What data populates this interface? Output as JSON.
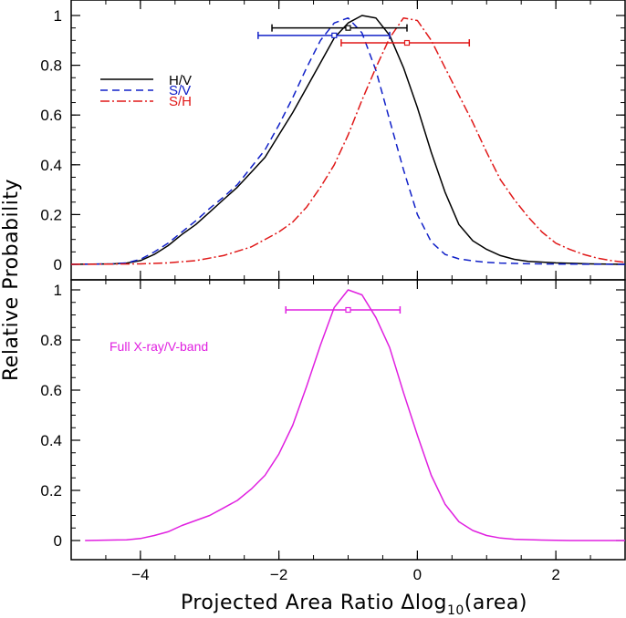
{
  "chart_data": [
    {
      "type": "line",
      "panel": "top",
      "xlim": [
        -5,
        3
      ],
      "ylim": [
        0,
        1.0
      ],
      "yticks": [
        0,
        0.2,
        0.4,
        0.6,
        0.8,
        1
      ],
      "ytick_labels": [
        "0",
        "0.2",
        "0.4",
        "0.6",
        "0.8",
        "1"
      ],
      "legend_position": "top-left",
      "series": [
        {
          "name": "H/V",
          "color": "#000000",
          "dash": "solid",
          "x": [
            -5,
            -4.4,
            -4.2,
            -4.0,
            -3.8,
            -3.6,
            -3.4,
            -3.2,
            -3.0,
            -2.8,
            -2.6,
            -2.4,
            -2.2,
            -2.0,
            -1.8,
            -1.6,
            -1.4,
            -1.2,
            -1.0,
            -0.8,
            -0.6,
            -0.4,
            -0.2,
            0.0,
            0.2,
            0.4,
            0.6,
            0.8,
            1.0,
            1.2,
            1.4,
            1.6,
            2.0,
            2.5,
            3.0
          ],
          "y": [
            0,
            0.002,
            0.005,
            0.015,
            0.04,
            0.075,
            0.12,
            0.16,
            0.21,
            0.26,
            0.31,
            0.37,
            0.43,
            0.52,
            0.61,
            0.71,
            0.81,
            0.91,
            0.97,
            1.0,
            0.99,
            0.92,
            0.79,
            0.63,
            0.45,
            0.29,
            0.16,
            0.095,
            0.06,
            0.035,
            0.02,
            0.012,
            0.006,
            0.002,
            0.0
          ]
        },
        {
          "name": "S/V",
          "color": "#1020c8",
          "dash": "dashed",
          "x": [
            -5,
            -4.4,
            -4.2,
            -4.0,
            -3.8,
            -3.6,
            -3.4,
            -3.2,
            -3.0,
            -2.8,
            -2.6,
            -2.4,
            -2.2,
            -2.0,
            -1.8,
            -1.6,
            -1.4,
            -1.2,
            -1.0,
            -0.8,
            -0.6,
            -0.4,
            -0.2,
            0.0,
            0.2,
            0.4,
            0.6,
            0.8,
            1.0,
            1.2,
            1.5,
            2.0,
            3.0
          ],
          "y": [
            0,
            0.002,
            0.006,
            0.02,
            0.05,
            0.085,
            0.13,
            0.175,
            0.225,
            0.27,
            0.32,
            0.39,
            0.46,
            0.56,
            0.67,
            0.79,
            0.9,
            0.97,
            0.99,
            0.93,
            0.78,
            0.58,
            0.38,
            0.2,
            0.09,
            0.04,
            0.022,
            0.014,
            0.008,
            0.005,
            0.003,
            0.001,
            0.0
          ]
        },
        {
          "name": "S/H",
          "color": "#e01818",
          "dash": "dashdot",
          "x": [
            -5,
            -4.0,
            -3.6,
            -3.2,
            -2.8,
            -2.4,
            -2.0,
            -1.8,
            -1.6,
            -1.4,
            -1.2,
            -1.0,
            -0.8,
            -0.6,
            -0.4,
            -0.2,
            0.0,
            0.2,
            0.4,
            0.6,
            0.8,
            1.0,
            1.2,
            1.4,
            1.6,
            1.8,
            2.0,
            2.2,
            2.4,
            2.6,
            2.8,
            3.0
          ],
          "y": [
            0,
            0.002,
            0.006,
            0.015,
            0.035,
            0.07,
            0.13,
            0.17,
            0.23,
            0.31,
            0.4,
            0.52,
            0.66,
            0.79,
            0.91,
            0.99,
            0.98,
            0.9,
            0.79,
            0.68,
            0.57,
            0.45,
            0.34,
            0.26,
            0.19,
            0.13,
            0.085,
            0.06,
            0.04,
            0.025,
            0.015,
            0.008
          ]
        }
      ],
      "error_bars": [
        {
          "series": "H/V",
          "color": "#000000",
          "x": -1.0,
          "xmin": -2.1,
          "xmax": -0.15,
          "y": 0.95
        },
        {
          "series": "S/V",
          "color": "#1020c8",
          "x": -1.2,
          "xmin": -2.3,
          "xmax": -0.4,
          "y": 0.92
        },
        {
          "series": "S/H",
          "color": "#e01818",
          "x": -0.15,
          "xmin": -1.1,
          "xmax": 0.75,
          "y": 0.89
        }
      ]
    },
    {
      "type": "line",
      "panel": "bottom",
      "xlim": [
        -5,
        3
      ],
      "ylim": [
        0,
        1.0
      ],
      "xticks": [
        -4,
        -2,
        0,
        2
      ],
      "xtick_labels": [
        "−4",
        "−2",
        "0",
        "2"
      ],
      "yticks": [
        0,
        0.2,
        0.4,
        0.6,
        0.8,
        1
      ],
      "ytick_labels": [
        "0",
        "0.2",
        "0.4",
        "0.6",
        "0.8",
        "1"
      ],
      "annotation": "Full X-ray/V-band",
      "series": [
        {
          "name": "Full X-ray/V-band",
          "color": "#e020e0",
          "dash": "solid",
          "x": [
            -4.8,
            -4.2,
            -4.0,
            -3.8,
            -3.6,
            -3.4,
            -3.2,
            -3.0,
            -2.8,
            -2.6,
            -2.4,
            -2.2,
            -2.0,
            -1.8,
            -1.6,
            -1.4,
            -1.2,
            -1.0,
            -0.8,
            -0.6,
            -0.4,
            -0.2,
            0.0,
            0.2,
            0.4,
            0.6,
            0.8,
            1.0,
            1.2,
            1.4,
            1.8,
            2.2,
            3.0
          ],
          "y": [
            0,
            0.003,
            0.008,
            0.02,
            0.035,
            0.06,
            0.08,
            0.1,
            0.13,
            0.16,
            0.205,
            0.26,
            0.345,
            0.46,
            0.615,
            0.78,
            0.93,
            1.0,
            0.98,
            0.89,
            0.77,
            0.59,
            0.42,
            0.26,
            0.145,
            0.075,
            0.04,
            0.02,
            0.01,
            0.005,
            0.002,
            0.0,
            0.0
          ]
        }
      ],
      "error_bars": [
        {
          "series": "Full X-ray/V-band",
          "color": "#e020e0",
          "x": -1.0,
          "xmin": -1.9,
          "xmax": -0.25,
          "y": 0.92
        }
      ]
    }
  ],
  "ylabel": "Relative Probability",
  "xlabel": {
    "prefix": "Projected Area Ratio Δlog",
    "subscript": "10",
    "suffix": "(area)"
  }
}
